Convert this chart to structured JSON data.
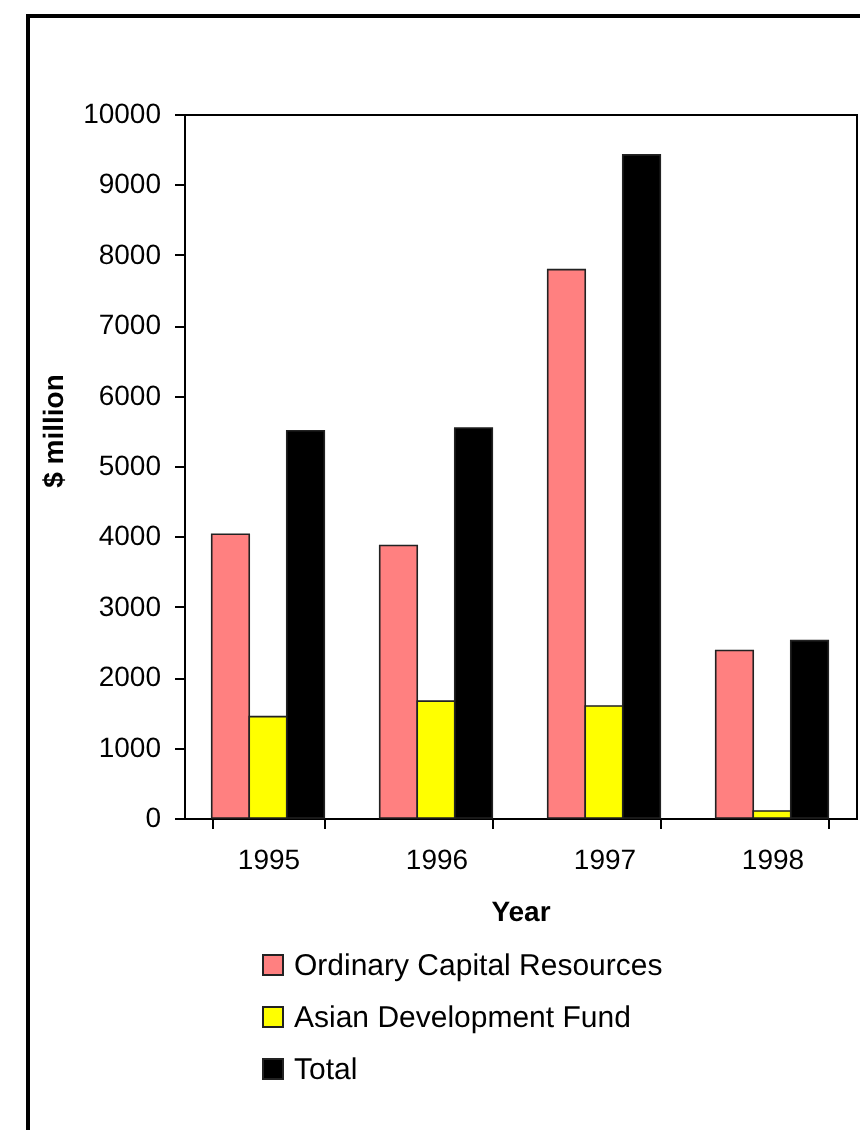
{
  "chart_data": {
    "type": "bar",
    "xlabel": "Year",
    "ylabel": "$ million",
    "categories": [
      "1995",
      "1996",
      "1997",
      "1998"
    ],
    "series": [
      {
        "name": "Ordinary Capital Resources",
        "color": "#ff8080",
        "values": [
          4030,
          3870,
          7790,
          2380
        ]
      },
      {
        "name": "Asian Development Fund",
        "color": "#ffff00",
        "values": [
          1440,
          1660,
          1590,
          100
        ]
      },
      {
        "name": "Total",
        "color": "#000000",
        "values": [
          5500,
          5540,
          9420,
          2520
        ]
      }
    ],
    "ylim": [
      0,
      10000
    ],
    "yticks": [
      0,
      1000,
      2000,
      3000,
      4000,
      5000,
      6000,
      7000,
      8000,
      9000,
      10000
    ],
    "legend": "bottom"
  }
}
